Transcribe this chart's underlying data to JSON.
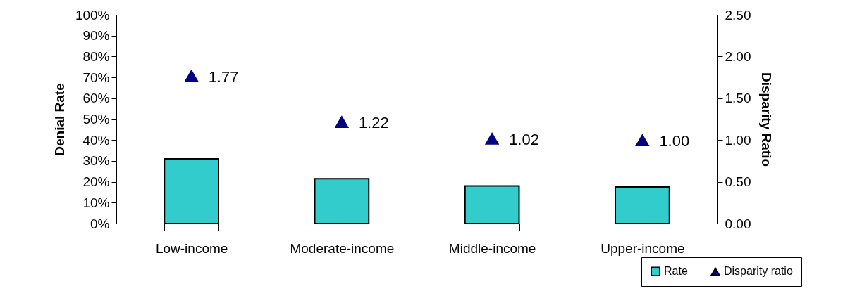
{
  "chart_data": {
    "type": "bar",
    "ylabel": "Denial Rate",
    "y2label": "Disparity Ratio",
    "categories": [
      "Low-income",
      "Moderate-income",
      "Middle-income",
      "Upper-income"
    ],
    "series": [
      {
        "name": "Rate",
        "color": "#33cccc",
        "values": [
          31,
          21.5,
          18,
          17.5
        ]
      },
      {
        "name": "Disparity ratio",
        "type": "scatter",
        "axis": "y2",
        "marker": "triangle",
        "color": "#000080",
        "values": [
          1.77,
          1.22,
          1.02,
          1.0
        ],
        "value_labels": [
          "1.77",
          "1.22",
          "1.02",
          "1.00"
        ]
      }
    ],
    "ylim": [
      0,
      100
    ],
    "yticks": [
      {
        "value": 0,
        "label": "0%"
      },
      {
        "value": 10,
        "label": "10%"
      },
      {
        "value": 20,
        "label": "20%"
      },
      {
        "value": 30,
        "label": "30%"
      },
      {
        "value": 40,
        "label": "40%"
      },
      {
        "value": 50,
        "label": "50%"
      },
      {
        "value": 60,
        "label": "60%"
      },
      {
        "value": 70,
        "label": "70%"
      },
      {
        "value": 80,
        "label": "80%"
      },
      {
        "value": 90,
        "label": "90%"
      },
      {
        "value": 100,
        "label": "100%"
      }
    ],
    "y2lim": [
      0,
      2.5
    ],
    "y2ticks": [
      {
        "value": 0,
        "label": "0.00"
      },
      {
        "value": 0.5,
        "label": "0.50"
      },
      {
        "value": 1,
        "label": "1.00"
      },
      {
        "value": 1.5,
        "label": "1.50"
      },
      {
        "value": 2,
        "label": "2.00"
      },
      {
        "value": 2.5,
        "label": "2.50"
      }
    ],
    "grid": false,
    "legend": "bottom right"
  }
}
